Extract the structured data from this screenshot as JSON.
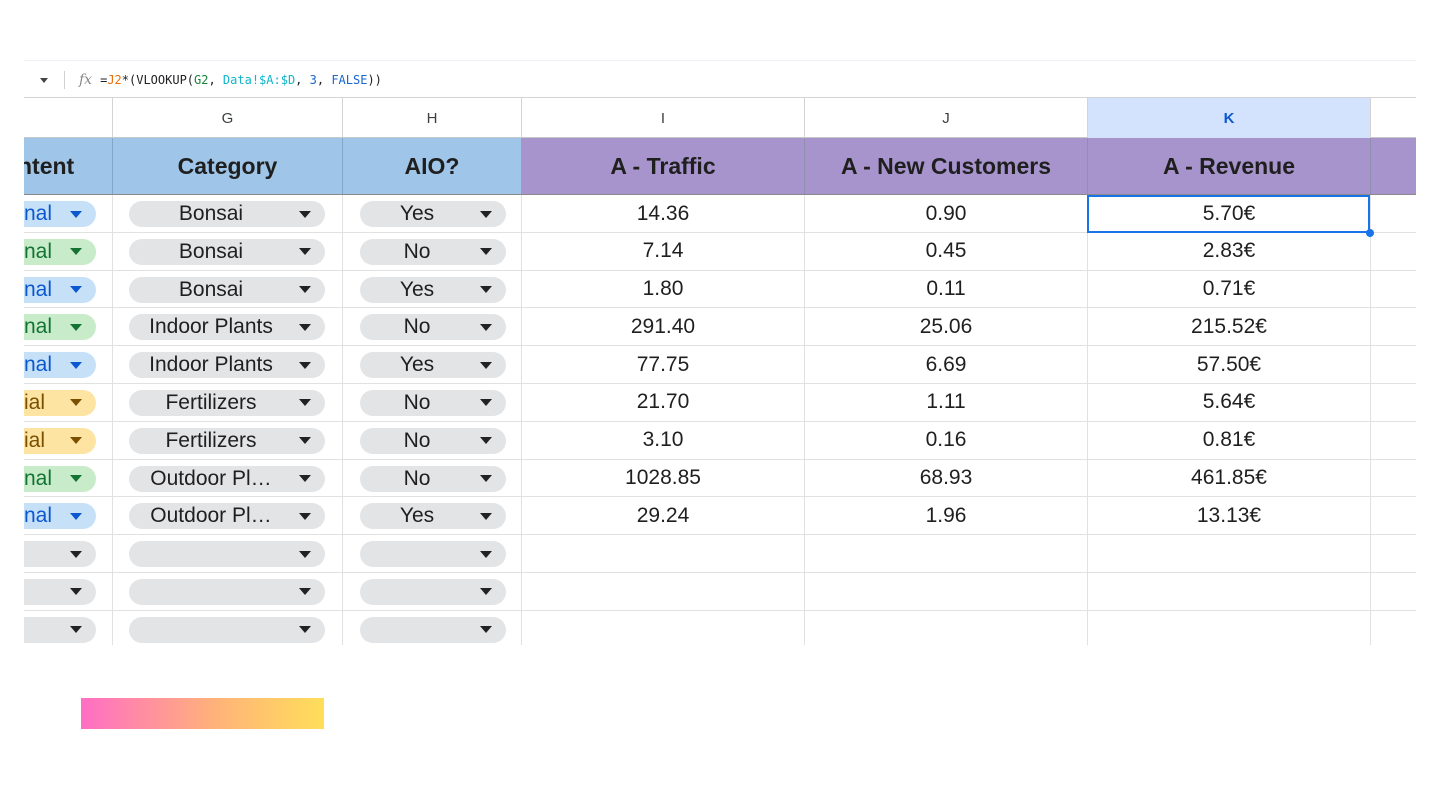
{
  "formula_bar": {
    "fx_label": "fx",
    "tokens": [
      {
        "t": "=",
        "c": ""
      },
      {
        "t": "J2",
        "c": "tk-ref1"
      },
      {
        "t": "*(VLOOKUP(",
        "c": ""
      },
      {
        "t": "G2",
        "c": "tk-ref2"
      },
      {
        "t": ", ",
        "c": ""
      },
      {
        "t": "Data!$A:$D",
        "c": "tk-ref3"
      },
      {
        "t": ", ",
        "c": ""
      },
      {
        "t": "3",
        "c": "tk-num"
      },
      {
        "t": ", ",
        "c": ""
      },
      {
        "t": "FALSE",
        "c": "tk-num"
      },
      {
        "t": "))",
        "c": ""
      }
    ]
  },
  "column_letters": {
    "g": "G",
    "h": "H",
    "i": "I",
    "j": "J",
    "k": "K"
  },
  "selected_column": "K",
  "headers": {
    "intent": "ntent",
    "category": "Category",
    "aio": "AIO?",
    "traffic": "A - Traffic",
    "new_customers": "A - New Customers",
    "revenue": "A - Revenue"
  },
  "rows": [
    {
      "intent": "nal",
      "intent_color": "blue",
      "category": "Bonsai",
      "aio": "Yes",
      "traffic": "14.36",
      "new_customers": "0.90",
      "revenue": "5.70€"
    },
    {
      "intent": "nal",
      "intent_color": "green",
      "category": "Bonsai",
      "aio": "No",
      "traffic": "7.14",
      "new_customers": "0.45",
      "revenue": "2.83€"
    },
    {
      "intent": "nal",
      "intent_color": "blue",
      "category": "Bonsai",
      "aio": "Yes",
      "traffic": "1.80",
      "new_customers": "0.11",
      "revenue": "0.71€"
    },
    {
      "intent": "nal",
      "intent_color": "green",
      "category": "Indoor Plants",
      "aio": "No",
      "traffic": "291.40",
      "new_customers": "25.06",
      "revenue": "215.52€"
    },
    {
      "intent": "nal",
      "intent_color": "blue",
      "category": "Indoor Plants",
      "aio": "Yes",
      "traffic": "77.75",
      "new_customers": "6.69",
      "revenue": "57.50€"
    },
    {
      "intent": "ial",
      "intent_color": "yellow",
      "category": "Fertilizers",
      "aio": "No",
      "traffic": "21.70",
      "new_customers": "1.11",
      "revenue": "5.64€"
    },
    {
      "intent": "ial",
      "intent_color": "yellow",
      "category": "Fertilizers",
      "aio": "No",
      "traffic": "3.10",
      "new_customers": "0.16",
      "revenue": "0.81€"
    },
    {
      "intent": "nal",
      "intent_color": "green",
      "category": "Outdoor Pl…",
      "aio": "No",
      "traffic": "1028.85",
      "new_customers": "68.93",
      "revenue": "461.85€"
    },
    {
      "intent": "nal",
      "intent_color": "blue",
      "category": "Outdoor Pl…",
      "aio": "Yes",
      "traffic": "29.24",
      "new_customers": "1.96",
      "revenue": "13.13€"
    },
    {
      "intent": "",
      "intent_color": "empty",
      "category": "",
      "aio": "",
      "traffic": "",
      "new_customers": "",
      "revenue": ""
    },
    {
      "intent": "",
      "intent_color": "empty",
      "category": "",
      "aio": "",
      "traffic": "",
      "new_customers": "",
      "revenue": ""
    },
    {
      "intent": "",
      "intent_color": "empty",
      "category": "",
      "aio": "",
      "traffic": "",
      "new_customers": "",
      "revenue": ""
    }
  ],
  "colors": {
    "metric_header_bg": "#a794cd",
    "dimension_header_bg": "#9fc5e8",
    "selection": "#1a73e8"
  }
}
